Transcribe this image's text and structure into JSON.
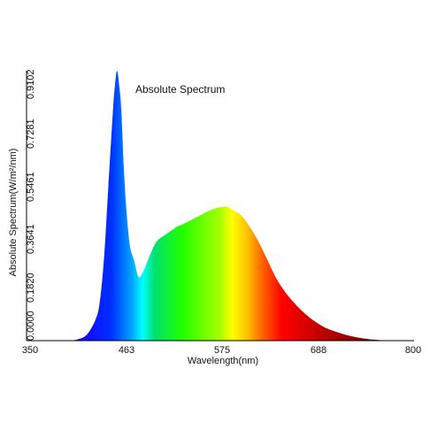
{
  "chart_data": {
    "type": "area",
    "title": "Absolute Spectrum",
    "xlabel": "Wavelength(nm)",
    "ylabel": "Absolute Spectrum(W/m²/nm)",
    "xlim": [
      350,
      800
    ],
    "ylim": [
      0,
      0.9102
    ],
    "x_ticks": [
      "350",
      "463",
      "575",
      "688",
      "800"
    ],
    "y_ticks": [
      "0.0000",
      "0.1820",
      "0.3641",
      "0.5461",
      "0.7281",
      "0.9102"
    ],
    "grid": false,
    "fill": "visible-spectrum rainbow",
    "series": [
      {
        "x": [
          400,
          410,
          420,
          430,
          435,
          440,
          445,
          450,
          452,
          455,
          458,
          460,
          463,
          466,
          470,
          475,
          480,
          485,
          490,
          495,
          500,
          505,
          510,
          515,
          520,
          525,
          530,
          540,
          550,
          560,
          570,
          575,
          580,
          585,
          590,
          600,
          610,
          620,
          630,
          640,
          650,
          660,
          670,
          680,
          690,
          700,
          720,
          740,
          760,
          780
        ],
        "y": [
          0.0,
          0.005,
          0.02,
          0.07,
          0.13,
          0.28,
          0.52,
          0.76,
          0.84,
          0.91,
          0.85,
          0.78,
          0.58,
          0.44,
          0.32,
          0.27,
          0.215,
          0.23,
          0.265,
          0.3,
          0.33,
          0.345,
          0.355,
          0.365,
          0.375,
          0.385,
          0.39,
          0.405,
          0.42,
          0.435,
          0.447,
          0.45,
          0.452,
          0.45,
          0.44,
          0.42,
          0.38,
          0.33,
          0.27,
          0.21,
          0.165,
          0.13,
          0.1,
          0.075,
          0.055,
          0.04,
          0.02,
          0.008,
          0.002,
          0.0
        ]
      }
    ]
  }
}
